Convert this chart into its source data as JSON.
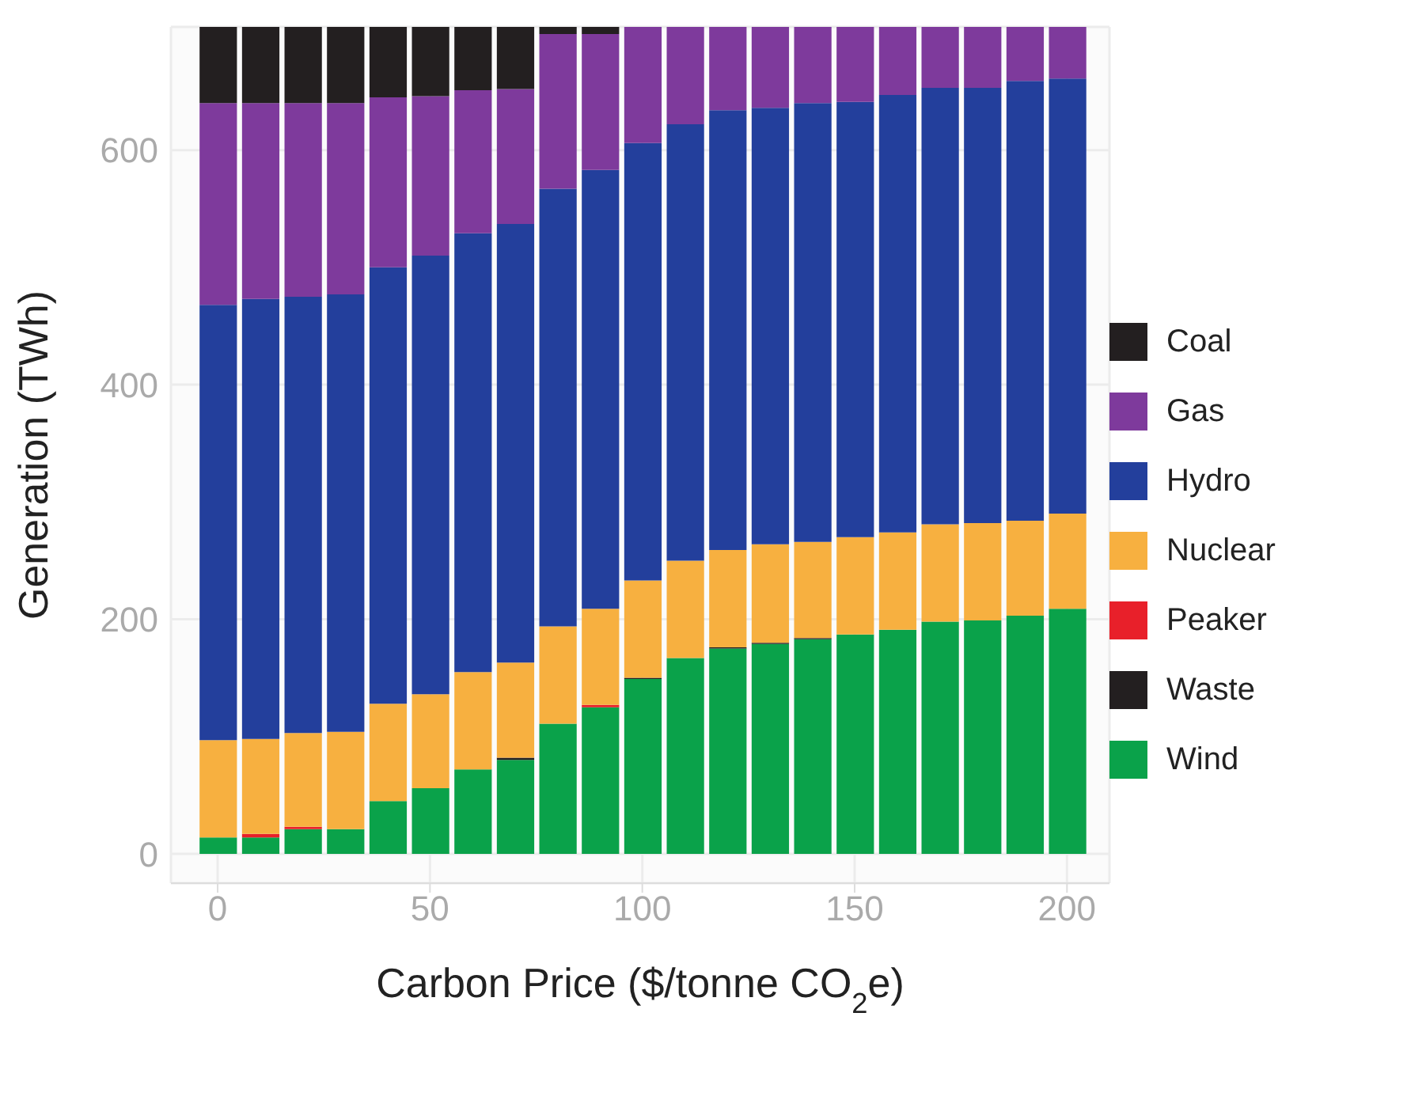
{
  "chart_data": {
    "type": "bar",
    "stacked": true,
    "xlabel": "Carbon Price ($/tonne CO$_{2}$e)",
    "ylabel": "Generation (TWh)",
    "x": [
      0,
      10,
      20,
      30,
      40,
      50,
      60,
      70,
      80,
      90,
      100,
      110,
      120,
      130,
      140,
      150,
      160,
      170,
      180,
      190,
      200
    ],
    "xlim": [
      -11,
      210
    ],
    "xticks": [
      0,
      50,
      100,
      150,
      200
    ],
    "ylim": [
      -25,
      705
    ],
    "yticks": [
      0,
      200,
      400,
      600
    ],
    "grid": true,
    "legend": "right",
    "series": [
      {
        "name": "Wind",
        "color": "#0aa24a",
        "values": [
          14,
          14,
          21,
          21,
          45,
          56,
          72,
          80,
          111,
          125,
          149,
          167,
          175,
          179,
          183,
          187,
          191,
          198,
          199,
          203,
          209
        ]
      },
      {
        "name": "Waste",
        "color": "#231f20",
        "values": [
          0,
          0,
          0,
          0,
          0,
          0,
          0,
          2,
          0,
          0,
          1,
          0,
          1,
          1,
          1,
          0,
          0,
          0,
          0,
          0,
          0
        ]
      },
      {
        "name": "Peaker",
        "color": "#e8202a",
        "values": [
          0,
          3,
          2,
          0,
          0,
          0,
          0,
          0,
          0,
          2,
          0,
          0,
          0,
          0,
          0,
          0,
          0,
          0,
          0,
          0,
          0
        ]
      },
      {
        "name": "Nuclear",
        "color": "#f7b040",
        "values": [
          83,
          81,
          80,
          83,
          83,
          80,
          83,
          81,
          83,
          82,
          83,
          83,
          83,
          84,
          82,
          83,
          83,
          83,
          83,
          81,
          81
        ]
      },
      {
        "name": "Hydro",
        "color": "#233f9c",
        "values": [
          371,
          375,
          372,
          373,
          372,
          374,
          374,
          374,
          373,
          374,
          373,
          372,
          375,
          372,
          374,
          371,
          373,
          372,
          371,
          375,
          371
        ]
      },
      {
        "name": "Gas",
        "color": "#7e3a9c",
        "values": [
          172,
          167,
          165,
          163,
          145,
          136,
          122,
          115,
          132,
          116,
          99,
          83,
          71,
          69,
          65,
          64,
          58,
          52,
          52,
          46,
          44
        ]
      },
      {
        "name": "Coal",
        "color": "#231f20",
        "values": [
          65,
          65,
          65,
          65,
          60,
          59,
          54,
          53,
          6,
          6,
          0,
          0,
          0,
          0,
          0,
          0,
          0,
          0,
          0,
          0,
          0
        ]
      }
    ]
  }
}
